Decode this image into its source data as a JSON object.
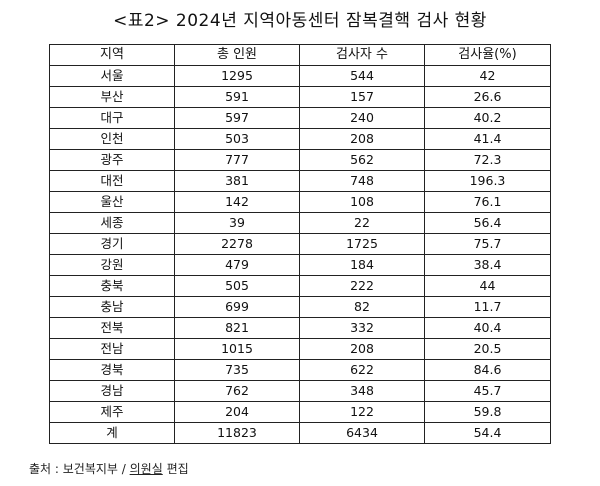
{
  "title": "<표2> 2024년 지역아동센터 잠복결핵 검사 현황",
  "table": {
    "headers": [
      "지역",
      "총 인원",
      "검사자 수",
      "검사율(%)"
    ],
    "rows": [
      [
        "서울",
        "1295",
        "544",
        "42"
      ],
      [
        "부산",
        "591",
        "157",
        "26.6"
      ],
      [
        "대구",
        "597",
        "240",
        "40.2"
      ],
      [
        "인천",
        "503",
        "208",
        "41.4"
      ],
      [
        "광주",
        "777",
        "562",
        "72.3"
      ],
      [
        "대전",
        "381",
        "748",
        "196.3"
      ],
      [
        "울산",
        "142",
        "108",
        "76.1"
      ],
      [
        "세종",
        "39",
        "22",
        "56.4"
      ],
      [
        "경기",
        "2278",
        "1725",
        "75.7"
      ],
      [
        "강원",
        "479",
        "184",
        "38.4"
      ],
      [
        "충북",
        "505",
        "222",
        "44"
      ],
      [
        "충남",
        "699",
        "82",
        "11.7"
      ],
      [
        "전북",
        "821",
        "332",
        "40.4"
      ],
      [
        "전남",
        "1015",
        "208",
        "20.5"
      ],
      [
        "경북",
        "735",
        "622",
        "84.6"
      ],
      [
        "경남",
        "762",
        "348",
        "45.7"
      ],
      [
        "제주",
        "204",
        "122",
        "59.8"
      ],
      [
        "계",
        "11823",
        "6434",
        "54.4"
      ]
    ]
  },
  "source": {
    "prefix": "출처 : 보건복지부 / ",
    "editor": "의원실",
    "suffix": " 편집"
  }
}
